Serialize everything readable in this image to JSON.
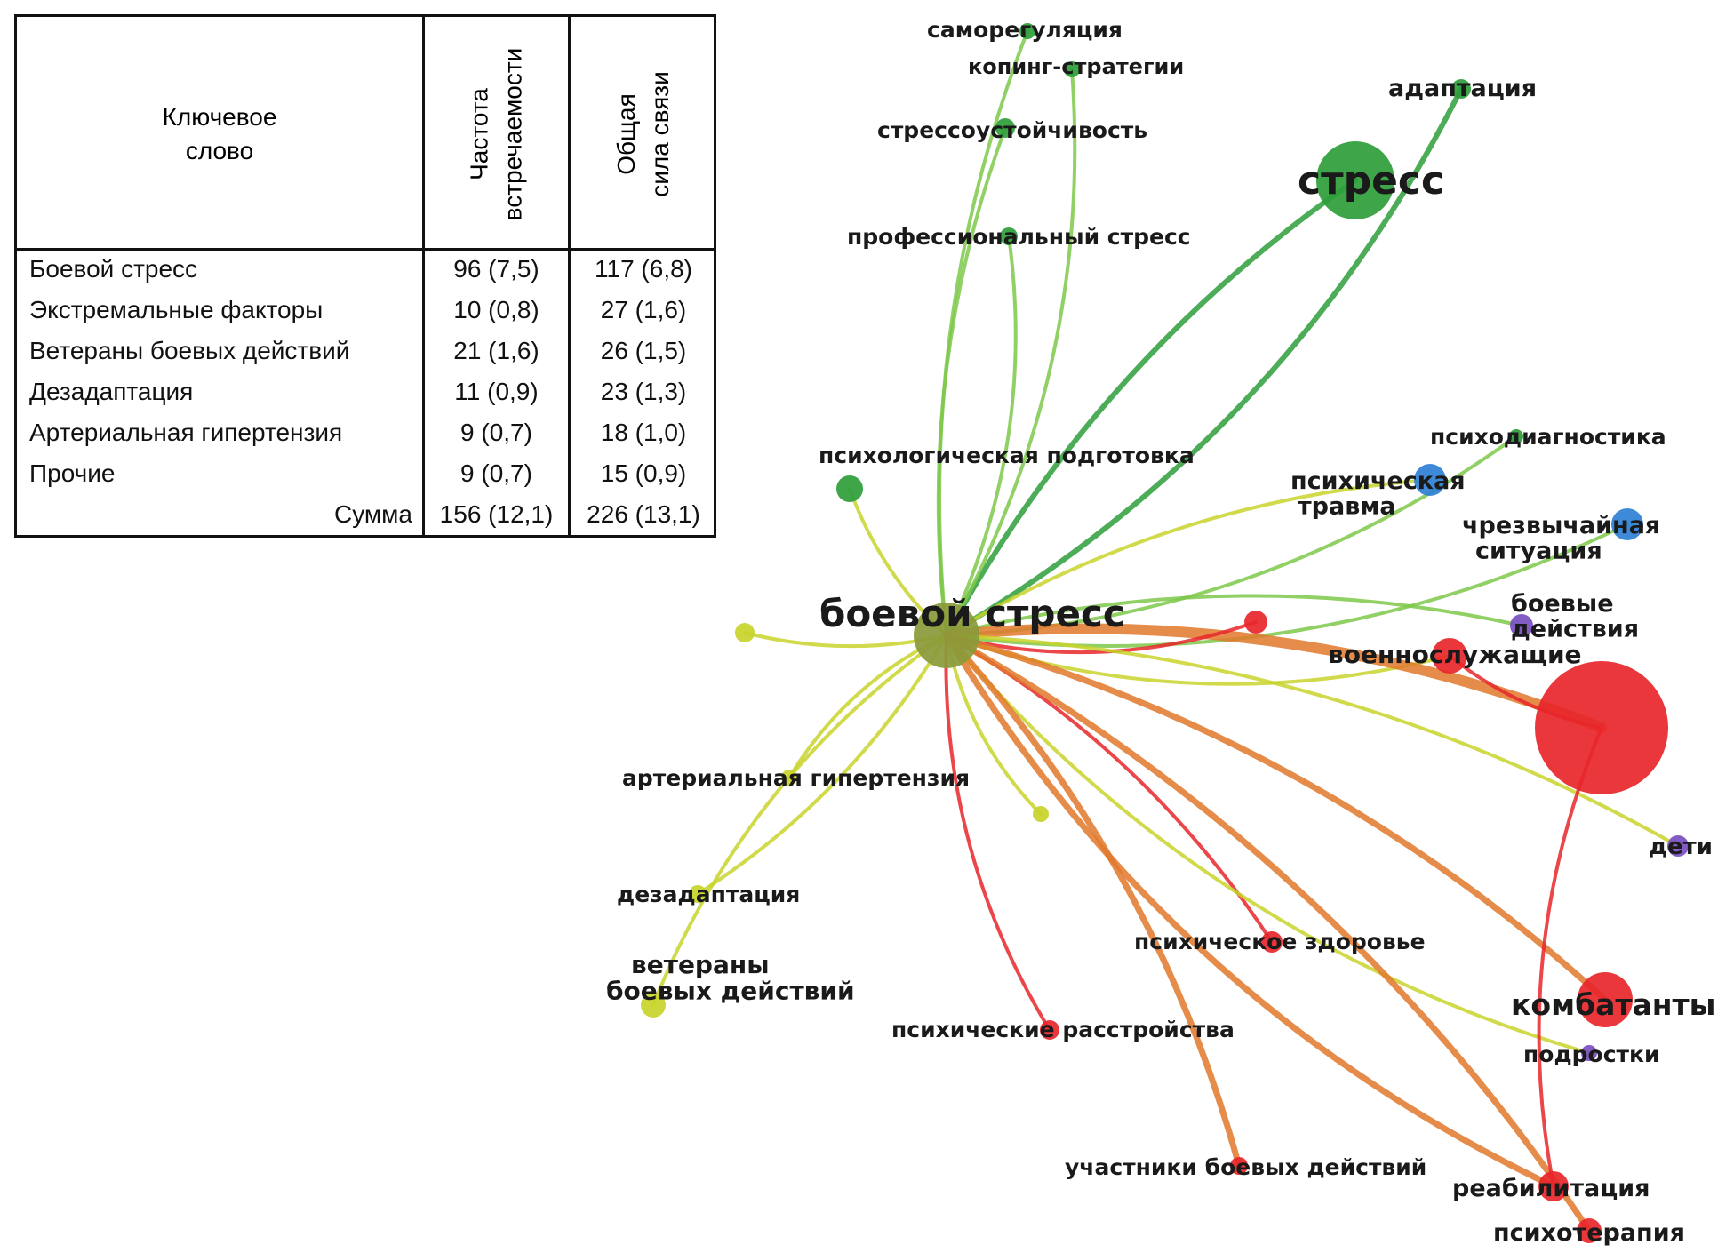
{
  "table": {
    "headers": {
      "keyword": "Ключевое\nслово",
      "frequency": "Частота\nвстречаемости",
      "link_strength": "Общая\nсила связи"
    },
    "rows": [
      {
        "keyword": "Боевой стресс",
        "frequency": "96 (7,5)",
        "link_strength": "117 (6,8)"
      },
      {
        "keyword": "Экстремальные факторы",
        "frequency": "10 (0,8)",
        "link_strength": "27 (1,6)"
      },
      {
        "keyword": "Ветераны боевых действий",
        "frequency": "21 (1,6)",
        "link_strength": "26 (1,5)"
      },
      {
        "keyword": "Дезадаптация",
        "frequency": "11 (0,9)",
        "link_strength": "23 (1,3)"
      },
      {
        "keyword": "Артериальная гипертензия",
        "frequency": "9 (0,7)",
        "link_strength": "18 (1,0)"
      },
      {
        "keyword": "Прочие",
        "frequency": "9 (0,7)",
        "link_strength": "15 (0,9)"
      }
    ],
    "total": {
      "keyword": "Сумма",
      "frequency": "156 (12,1)",
      "link_strength": "226 (13,1)"
    }
  },
  "network": {
    "colors": {
      "yellow": "#c8d42a",
      "green": "#2e9e3a",
      "lightgreen": "#7ec84a",
      "red": "#e8262a",
      "orange": "#e0782a",
      "blue": "#2f7fd6",
      "purple": "#7a4ec0"
    },
    "nodes": [
      {
        "id": "center",
        "label": "боевой стресс",
        "color": "yellow"
      },
      {
        "id": "stress",
        "label": "стресс",
        "color": "green"
      },
      {
        "id": "adapt",
        "label": "адаптация",
        "color": "green"
      },
      {
        "id": "selfreg",
        "label": "саморегуляция",
        "color": "green"
      },
      {
        "id": "coping",
        "label": "копинг-стратегии",
        "color": "green"
      },
      {
        "id": "resil",
        "label": "стрессоустойчивость",
        "color": "green"
      },
      {
        "id": "profstress",
        "label": "профессиональный стресс",
        "color": "green"
      },
      {
        "id": "psyprep",
        "label": "психологическая подготовка",
        "color": "green"
      },
      {
        "id": "psydiag",
        "label": "психодиагностика",
        "color": "green"
      },
      {
        "id": "trauma",
        "label": "психическая\nтравма",
        "color": "blue"
      },
      {
        "id": "emerg",
        "label": "чрезвычайная\nситуация",
        "color": "blue"
      },
      {
        "id": "combat",
        "label": "боевые\nдействия",
        "color": "purple"
      },
      {
        "id": "soldiers",
        "label": "военнослужащие",
        "color": "red"
      },
      {
        "id": "bigred",
        "label": "",
        "color": "red"
      },
      {
        "id": "smallred",
        "label": "",
        "color": "red"
      },
      {
        "id": "children",
        "label": "дети",
        "color": "purple"
      },
      {
        "id": "hypert",
        "label": "артериальная гипертензия",
        "color": "yellow"
      },
      {
        "id": "disadapt",
        "label": "дезадаптация",
        "color": "yellow"
      },
      {
        "id": "veterans",
        "label": "ветераны\nбоевых действий",
        "color": "yellow"
      },
      {
        "id": "smallyel1",
        "label": "",
        "color": "yellow"
      },
      {
        "id": "smallyel2",
        "label": "",
        "color": "yellow"
      },
      {
        "id": "mhealth",
        "label": "психическое здоровье",
        "color": "red"
      },
      {
        "id": "mdis",
        "label": "психические расстройства",
        "color": "red"
      },
      {
        "id": "combatants",
        "label": "комбатанты",
        "color": "red"
      },
      {
        "id": "teens",
        "label": "подростки",
        "color": "purple"
      },
      {
        "id": "participants",
        "label": "участники боевых действий",
        "color": "red"
      },
      {
        "id": "rehab",
        "label": "реабилитация",
        "color": "red"
      },
      {
        "id": "psytherapy",
        "label": "психотерапия",
        "color": "red"
      }
    ],
    "edges": [
      [
        "center",
        "stress",
        "green"
      ],
      [
        "center",
        "adapt",
        "green"
      ],
      [
        "center",
        "selfreg",
        "lightgreen"
      ],
      [
        "center",
        "coping",
        "lightgreen"
      ],
      [
        "center",
        "resil",
        "lightgreen"
      ],
      [
        "center",
        "profstress",
        "lightgreen"
      ],
      [
        "center",
        "psyprep",
        "yellow"
      ],
      [
        "center",
        "psydiag",
        "lightgreen"
      ],
      [
        "center",
        "trauma",
        "yellow"
      ],
      [
        "center",
        "emerg",
        "lightgreen"
      ],
      [
        "center",
        "combat",
        "lightgreen"
      ],
      [
        "center",
        "soldiers",
        "yellow"
      ],
      [
        "center",
        "bigred",
        "orange"
      ],
      [
        "center",
        "smallred",
        "red"
      ],
      [
        "center",
        "children",
        "yellow"
      ],
      [
        "center",
        "hypert",
        "yellow"
      ],
      [
        "center",
        "disadapt",
        "yellow"
      ],
      [
        "center",
        "veterans",
        "yellow"
      ],
      [
        "center",
        "smallyel1",
        "yellow"
      ],
      [
        "center",
        "smallyel2",
        "yellow"
      ],
      [
        "center",
        "mhealth",
        "red"
      ],
      [
        "center",
        "mdis",
        "red"
      ],
      [
        "center",
        "combatants",
        "orange"
      ],
      [
        "center",
        "teens",
        "yellow"
      ],
      [
        "center",
        "participants",
        "orange"
      ],
      [
        "center",
        "rehab",
        "orange"
      ],
      [
        "center",
        "psytherapy",
        "orange"
      ],
      [
        "bigred",
        "rehab",
        "red"
      ],
      [
        "bigred",
        "soldiers",
        "red"
      ]
    ]
  }
}
